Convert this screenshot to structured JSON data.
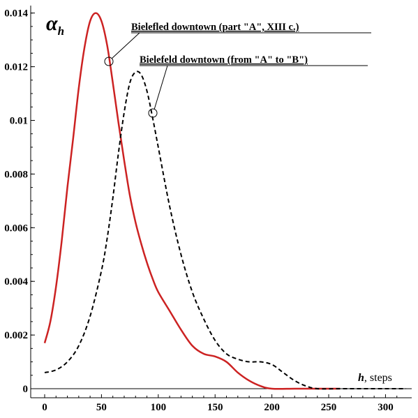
{
  "chart_data": {
    "type": "line",
    "title": "",
    "xlabel": {
      "var": "h",
      "unit": ", steps"
    },
    "ylabel": {
      "symbol": "α",
      "subscript": "h"
    },
    "xlim": [
      0,
      320
    ],
    "ylim": [
      0,
      0.0142
    ],
    "x_ticks": [
      0,
      50,
      100,
      150,
      200,
      250,
      300
    ],
    "y_ticks": [
      0,
      0.002,
      0.004,
      0.006,
      0.008,
      0.01,
      0.012,
      0.014
    ],
    "grid": false,
    "series": [
      {
        "name": "Bielefled downtown (part \"A\", XIII c.)",
        "color": "#cc2222",
        "style": "solid",
        "points": [
          [
            0,
            0.0017
          ],
          [
            5,
            0.0025
          ],
          [
            10,
            0.0038
          ],
          [
            15,
            0.0055
          ],
          [
            20,
            0.0075
          ],
          [
            25,
            0.0093
          ],
          [
            30,
            0.0112
          ],
          [
            35,
            0.0127
          ],
          [
            40,
            0.0137
          ],
          [
            45,
            0.014
          ],
          [
            50,
            0.0137
          ],
          [
            55,
            0.0128
          ],
          [
            60,
            0.0114
          ],
          [
            65,
            0.0099
          ],
          [
            70,
            0.0085
          ],
          [
            75,
            0.0072
          ],
          [
            80,
            0.0062
          ],
          [
            85,
            0.0054
          ],
          [
            90,
            0.0047
          ],
          [
            95,
            0.0041
          ],
          [
            100,
            0.0036
          ],
          [
            110,
            0.0029
          ],
          [
            120,
            0.0022
          ],
          [
            130,
            0.0016
          ],
          [
            140,
            0.0013
          ],
          [
            150,
            0.0012
          ],
          [
            160,
            0.001
          ],
          [
            170,
            0.0006
          ],
          [
            180,
            0.0003
          ],
          [
            190,
            0.0001
          ],
          [
            200,
            0.0
          ],
          [
            220,
            0.0
          ],
          [
            240,
            0.0
          ],
          [
            260,
            0.0
          ]
        ]
      },
      {
        "name": "Bielefeld downtown (from \"A\" to \"B\")",
        "color": "#000000",
        "style": "dashed",
        "points": [
          [
            0,
            0.0006
          ],
          [
            10,
            0.0007
          ],
          [
            20,
            0.001
          ],
          [
            30,
            0.0016
          ],
          [
            40,
            0.0027
          ],
          [
            50,
            0.0044
          ],
          [
            55,
            0.0056
          ],
          [
            60,
            0.0071
          ],
          [
            65,
            0.0088
          ],
          [
            70,
            0.0103
          ],
          [
            75,
            0.0114
          ],
          [
            80,
            0.0118
          ],
          [
            85,
            0.0117
          ],
          [
            90,
            0.0111
          ],
          [
            95,
            0.0101
          ],
          [
            100,
            0.009
          ],
          [
            110,
            0.0068
          ],
          [
            120,
            0.005
          ],
          [
            130,
            0.0036
          ],
          [
            140,
            0.0026
          ],
          [
            150,
            0.0018
          ],
          [
            160,
            0.0013
          ],
          [
            170,
            0.0011
          ],
          [
            180,
            0.001
          ],
          [
            190,
            0.001
          ],
          [
            200,
            0.0009
          ],
          [
            210,
            0.0006
          ],
          [
            220,
            0.0003
          ],
          [
            230,
            0.0001
          ],
          [
            240,
            0.0
          ],
          [
            260,
            0.0
          ],
          [
            280,
            0.0
          ],
          [
            300,
            0.0
          ],
          [
            318,
            0.0
          ]
        ]
      }
    ],
    "annotations": [
      {
        "text": "Bielefled downtown (part \"A\", XIII c.)",
        "series": 0
      },
      {
        "text": "Bielefeld downtown (from \"A\" to \"B\")",
        "series": 1
      }
    ]
  }
}
